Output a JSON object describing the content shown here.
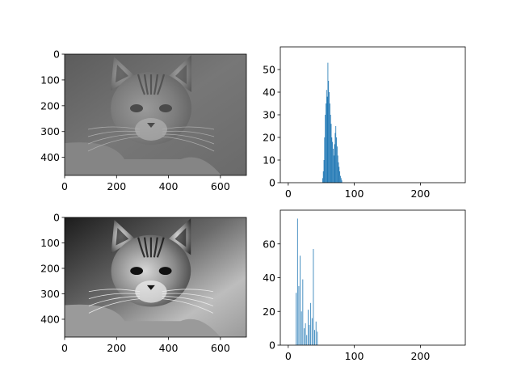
{
  "chart_data": [
    {
      "id": "image-original",
      "type": "image",
      "content": "grayscale photo of a tabby cat",
      "xlim": [
        0,
        700
      ],
      "ylim": [
        470,
        0
      ],
      "xticks": [
        0,
        200,
        400,
        600
      ],
      "yticks": [
        0,
        100,
        200,
        300,
        400
      ],
      "style": {
        "low": "#7a7a7a",
        "high": "#8f8f8f",
        "bg": "#4a4a4a"
      }
    },
    {
      "id": "hist-original",
      "type": "bar",
      "xlim": [
        -12,
        268
      ],
      "ylim": [
        0,
        60
      ],
      "xticks": [
        0,
        100,
        200
      ],
      "yticks": [
        0,
        10,
        20,
        30,
        40,
        50
      ],
      "color": "#1f77b4",
      "bins": [
        {
          "x": 52,
          "v": 2
        },
        {
          "x": 53,
          "v": 5
        },
        {
          "x": 54,
          "v": 10
        },
        {
          "x": 55,
          "v": 20
        },
        {
          "x": 56,
          "v": 30
        },
        {
          "x": 57,
          "v": 35
        },
        {
          "x": 58,
          "v": 41
        },
        {
          "x": 59,
          "v": 38
        },
        {
          "x": 60,
          "v": 53
        },
        {
          "x": 61,
          "v": 45
        },
        {
          "x": 62,
          "v": 40
        },
        {
          "x": 63,
          "v": 35
        },
        {
          "x": 64,
          "v": 30
        },
        {
          "x": 65,
          "v": 26
        },
        {
          "x": 66,
          "v": 20
        },
        {
          "x": 67,
          "v": 18
        },
        {
          "x": 68,
          "v": 15
        },
        {
          "x": 69,
          "v": 12
        },
        {
          "x": 70,
          "v": 17
        },
        {
          "x": 71,
          "v": 22
        },
        {
          "x": 72,
          "v": 25
        },
        {
          "x": 73,
          "v": 20
        },
        {
          "x": 74,
          "v": 16
        },
        {
          "x": 75,
          "v": 12
        },
        {
          "x": 76,
          "v": 9
        },
        {
          "x": 77,
          "v": 7
        },
        {
          "x": 78,
          "v": 5
        },
        {
          "x": 79,
          "v": 3
        },
        {
          "x": 80,
          "v": 2
        },
        {
          "x": 81,
          "v": 1
        }
      ]
    },
    {
      "id": "image-enhanced",
      "type": "image",
      "content": "higher-contrast grayscale photo of the same tabby cat",
      "xlim": [
        0,
        700
      ],
      "ylim": [
        470,
        0
      ],
      "xticks": [
        0,
        200,
        400,
        600
      ],
      "yticks": [
        0,
        100,
        200,
        300,
        400
      ],
      "style": {
        "low": "#1a1a1a",
        "high": "#e0e0e0",
        "bg": "#2a2a2a"
      }
    },
    {
      "id": "hist-enhanced",
      "type": "bar",
      "xlim": [
        -12,
        268
      ],
      "ylim": [
        0,
        80
      ],
      "xticks": [
        0,
        100,
        200
      ],
      "yticks": [
        0,
        20,
        40,
        60
      ],
      "color": "#1f77b4",
      "bins": [
        {
          "x": 12,
          "v": 31
        },
        {
          "x": 14,
          "v": 75
        },
        {
          "x": 16,
          "v": 35
        },
        {
          "x": 18,
          "v": 53
        },
        {
          "x": 20,
          "v": 20
        },
        {
          "x": 22,
          "v": 39
        },
        {
          "x": 24,
          "v": 10
        },
        {
          "x": 26,
          "v": 13
        },
        {
          "x": 28,
          "v": 6
        },
        {
          "x": 30,
          "v": 21
        },
        {
          "x": 32,
          "v": 12
        },
        {
          "x": 34,
          "v": 25
        },
        {
          "x": 36,
          "v": 16
        },
        {
          "x": 38,
          "v": 57
        },
        {
          "x": 40,
          "v": 9
        },
        {
          "x": 42,
          "v": 14
        },
        {
          "x": 44,
          "v": 8
        }
      ]
    }
  ]
}
